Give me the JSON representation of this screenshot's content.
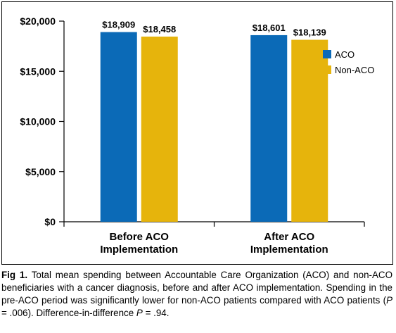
{
  "chart_data": {
    "type": "bar",
    "categories": [
      [
        "Before ACO",
        "Implementation"
      ],
      [
        "After ACO",
        "Implementation"
      ]
    ],
    "series": [
      {
        "name": "ACO",
        "values": [
          18909,
          18601
        ],
        "labels": [
          "$18,909",
          "$18,601"
        ],
        "color": "#0b6ab7"
      },
      {
        "name": "Non-ACO",
        "values": [
          18458,
          18139
        ],
        "labels": [
          "$18,458",
          "$18,139"
        ],
        "color": "#e6b40c"
      }
    ],
    "ylim": [
      0,
      20000
    ],
    "yticks": [
      0,
      5000,
      10000,
      15000,
      20000
    ],
    "ytick_labels": [
      "$0",
      "$5,000",
      "$10,000",
      "$15,000",
      "$20,000"
    ],
    "legend_position": "right",
    "grid": false,
    "title": "",
    "xlabel": "",
    "ylabel": ""
  },
  "caption": {
    "label": "Fig 1.",
    "text_part1": " Total mean spending between Accountable Care Organization (ACO) and non-ACO beneficiaries with a cancer diagnosis, before and after ACO implementation. Spending in the pre-ACO period was significantly lower for non-ACO patients compared with ACO patients (",
    "p_symbol_1": "P",
    "text_part2": " = .006). Difference-in-difference ",
    "p_symbol_2": "P",
    "text_part3": " = .94."
  }
}
